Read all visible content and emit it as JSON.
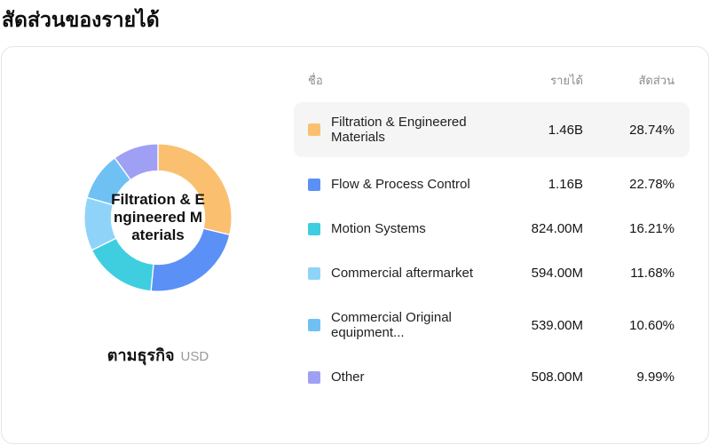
{
  "page_title": "สัดส่วนของรายได้",
  "chart": {
    "center_label": "Filtration & Engineered Materials",
    "footer_label": "ตามธุรกิจ",
    "footer_unit": "USD"
  },
  "table": {
    "headers": {
      "name": "ชื่อ",
      "revenue": "รายได้",
      "share": "สัดส่วน"
    },
    "rows": [
      {
        "name": "Filtration & Engineered Materials",
        "revenue": "1.46B",
        "share": "28.74%",
        "color": "#FAC070",
        "highlighted": true
      },
      {
        "name": "Flow & Process Control",
        "revenue": "1.16B",
        "share": "22.78%",
        "color": "#5B90F7",
        "highlighted": false
      },
      {
        "name": "Motion Systems",
        "revenue": "824.00M",
        "share": "16.21%",
        "color": "#3ECEE0",
        "highlighted": false
      },
      {
        "name": "Commercial aftermarket",
        "revenue": "594.00M",
        "share": "11.68%",
        "color": "#8FD4F8",
        "highlighted": false
      },
      {
        "name": "Commercial Original equipment...",
        "revenue": "539.00M",
        "share": "10.60%",
        "color": "#6FC1F4",
        "highlighted": false
      },
      {
        "name": "Other",
        "revenue": "508.00M",
        "share": "9.99%",
        "color": "#9FA0F4",
        "highlighted": false
      }
    ]
  },
  "chart_data": {
    "type": "pie",
    "subtype": "donut",
    "title": "สัดส่วนของรายได้",
    "categories": [
      "Filtration & Engineered Materials",
      "Flow & Process Control",
      "Motion Systems",
      "Commercial aftermarket",
      "Commercial Original equipment...",
      "Other"
    ],
    "values": [
      28.74,
      22.78,
      16.21,
      11.68,
      10.6,
      9.99
    ],
    "revenues": [
      "1.46B",
      "1.16B",
      "824.00M",
      "594.00M",
      "539.00M",
      "508.00M"
    ],
    "unit": "USD",
    "colors": [
      "#FAC070",
      "#5B90F7",
      "#3ECEE0",
      "#8FD4F8",
      "#6FC1F4",
      "#9FA0F4"
    ],
    "center_label": "Filtration & Engineered Materials",
    "legend_position": "right",
    "start_angle_deg": 0,
    "direction": "clockwise"
  },
  "colors": {
    "card_border": "#e3e3ec",
    "row_highlight_bg": "#f5f5f6",
    "header_text": "#8c8c8c",
    "body_text": "#1f1f1f"
  }
}
